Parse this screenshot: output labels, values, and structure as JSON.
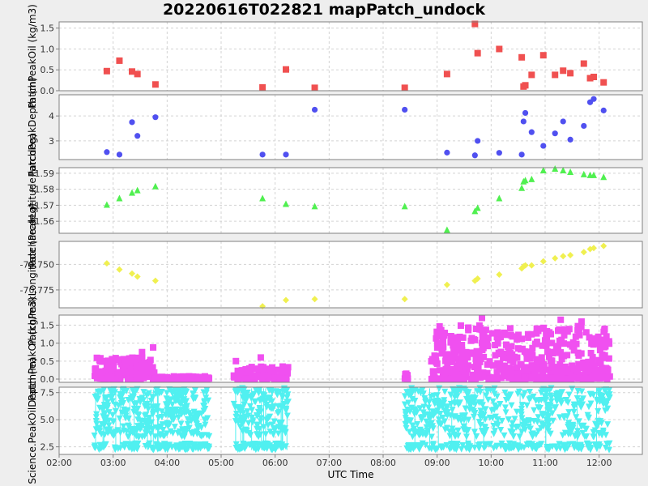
{
  "title": "20220616T022821 mapPatch_undock",
  "xlabel": "UTC Time",
  "colors": {
    "background": "#eeeeee",
    "plot_bg": "#ffffff",
    "grid": "#d3d3d3",
    "red": "#f05050",
    "blue": "#5050f0",
    "green": "#50f050",
    "yellow": "#f0f050",
    "magenta": "#f050f0",
    "cyan": "#50f0f0"
  },
  "chart_data": [
    {
      "type": "scatter",
      "ylabel": "PatchPeakOil (kg/m3)",
      "marker": "square",
      "color": "#f05050",
      "xlim": [
        "02:00",
        "12:48"
      ],
      "ylim": [
        0,
        1.65
      ],
      "yticks": [
        0.0,
        0.5,
        1.0,
        1.5
      ],
      "ytick_labels": [
        "0.0",
        "0.5",
        "1.0",
        "1.5"
      ],
      "x": [
        "02:53",
        "03:07",
        "03:21",
        "03:27",
        "03:47",
        "05:46",
        "06:12",
        "06:44",
        "08:24",
        "09:11",
        "09:42",
        "09:45",
        "10:09",
        "10:34",
        "10:36",
        "10:38",
        "10:45",
        "10:58",
        "11:11",
        "11:20",
        "11:28",
        "11:43",
        "11:50",
        "11:54",
        "12:05"
      ],
      "y": [
        0.47,
        0.72,
        0.46,
        0.4,
        0.15,
        0.08,
        0.51,
        0.07,
        0.07,
        0.4,
        1.6,
        0.9,
        1.0,
        0.8,
        0.1,
        0.13,
        0.38,
        0.85,
        0.38,
        0.48,
        0.42,
        0.65,
        0.3,
        0.33,
        0.2
      ]
    },
    {
      "type": "scatter",
      "ylabel": "PatchPeakDepth (m)",
      "marker": "circle",
      "color": "#5050f0",
      "xlim": [
        "02:00",
        "12:48"
      ],
      "ylim": [
        2.25,
        4.85
      ],
      "yticks": [
        3,
        4
      ],
      "ytick_labels": [
        "3",
        "4"
      ],
      "x": [
        "02:53",
        "03:07",
        "03:21",
        "03:27",
        "03:47",
        "05:46",
        "06:12",
        "06:44",
        "08:24",
        "09:11",
        "09:42",
        "09:45",
        "10:09",
        "10:34",
        "10:36",
        "10:38",
        "10:45",
        "10:58",
        "11:11",
        "11:20",
        "11:28",
        "11:43",
        "11:50",
        "11:54",
        "12:05"
      ],
      "y": [
        2.55,
        2.45,
        3.75,
        3.2,
        3.95,
        2.45,
        2.45,
        4.25,
        4.25,
        2.53,
        2.42,
        3.0,
        2.52,
        2.45,
        3.78,
        4.12,
        3.35,
        2.8,
        3.3,
        3.78,
        3.05,
        3.6,
        4.55,
        4.68,
        4.22
      ]
    },
    {
      "type": "scatter",
      "ylabel": "PatchPeakLatitude (arcdeg)",
      "marker": "triangle-up",
      "color": "#50f050",
      "xlim": [
        "02:00",
        "12:48"
      ],
      "ylim": [
        41.5525,
        41.5935
      ],
      "yticks": [
        41.56,
        41.57,
        41.58,
        41.59
      ],
      "ytick_labels": [
        "41.56",
        "41.57",
        "41.58",
        "41.59"
      ],
      "x": [
        "02:53",
        "03:07",
        "03:21",
        "03:27",
        "03:47",
        "05:46",
        "06:12",
        "06:44",
        "08:24",
        "09:11",
        "09:42",
        "09:45",
        "10:09",
        "10:34",
        "10:36",
        "10:38",
        "10:45",
        "10:58",
        "11:11",
        "11:20",
        "11:28",
        "11:43",
        "11:50",
        "11:54",
        "12:05"
      ],
      "y": [
        41.5705,
        41.5745,
        41.578,
        41.5795,
        41.582,
        41.5745,
        41.571,
        41.5695,
        41.5695,
        41.5548,
        41.5665,
        41.5685,
        41.5745,
        41.581,
        41.585,
        41.5858,
        41.5865,
        41.592,
        41.593,
        41.592,
        41.591,
        41.5895,
        41.589,
        41.589,
        41.5878
      ]
    },
    {
      "type": "scatter",
      "ylabel": "PatchPeakLongitude (arcdeg)",
      "marker": "diamond",
      "color": "#f0f050",
      "xlim": [
        "02:00",
        "12:48"
      ],
      "ylim": [
        -70.7925,
        -70.7275
      ],
      "yticks": [
        -70.775,
        -70.75
      ],
      "ytick_labels": [
        "-70.775",
        "-70.750"
      ],
      "x": [
        "02:53",
        "03:07",
        "03:21",
        "03:27",
        "03:47",
        "05:46",
        "06:12",
        "06:44",
        "08:24",
        "09:11",
        "09:42",
        "09:45",
        "10:09",
        "10:34",
        "10:36",
        "10:38",
        "10:45",
        "10:58",
        "11:11",
        "11:20",
        "11:28",
        "11:43",
        "11:50",
        "11:54",
        "12:05"
      ],
      "y": [
        -70.749,
        -70.755,
        -70.759,
        -70.762,
        -70.766,
        -70.791,
        -70.785,
        -70.784,
        -70.784,
        -70.77,
        -70.766,
        -70.764,
        -70.76,
        -70.754,
        -70.752,
        -70.751,
        -70.751,
        -70.747,
        -70.744,
        -70.742,
        -70.741,
        -70.738,
        -70.735,
        -70.734,
        -70.732
      ]
    },
    {
      "type": "scatter",
      "ylabel": "PatchPeakOil (kg/m3)",
      "marker": "square",
      "color": "#f050f0",
      "xlim": [
        "02:00",
        "12:48"
      ],
      "ylim": [
        -0.09,
        1.78
      ],
      "yticks": [
        0.0,
        0.5,
        1.0,
        1.5
      ],
      "ytick_labels": [
        "0.0",
        "0.5",
        "1.0",
        "1.5"
      ],
      "segments": [
        {
          "start": "02:39",
          "end": "03:46",
          "ymin": 0.0,
          "ymax": 0.6,
          "peaks": [
            0.88,
            0.75
          ],
          "n": 160
        },
        {
          "start": "03:46",
          "end": "04:47",
          "ymin": 0.0,
          "ymax": 0.08,
          "peaks": [],
          "n": 80
        },
        {
          "start": "05:14",
          "end": "06:15",
          "ymin": 0.0,
          "ymax": 0.35,
          "peaks": [
            0.6,
            0.5
          ],
          "n": 110
        },
        {
          "start": "08:24",
          "end": "08:30",
          "ymin": 0.0,
          "ymax": 0.2,
          "peaks": [],
          "n": 10
        },
        {
          "start": "08:53",
          "end": "12:12",
          "ymin": 0.0,
          "ymax": 1.5,
          "peaks": [
            1.7,
            1.65,
            1.6
          ],
          "n": 520
        }
      ]
    },
    {
      "type": "scatter",
      "ylabel": "Science.PeakOilDepth (m)",
      "marker": "triangle-down",
      "color": "#50f0f0",
      "xlim": [
        "02:00",
        "12:48"
      ],
      "ylim": [
        1.8,
        8.0
      ],
      "yticks": [
        2.5,
        5.0,
        7.5
      ],
      "ytick_labels": [
        "2.5",
        "5.0",
        "7.5"
      ],
      "segments": [
        {
          "start": "02:39",
          "end": "04:47",
          "ymin": 2.2,
          "ymax": 7.8,
          "n": 450
        },
        {
          "start": "05:14",
          "end": "06:15",
          "ymin": 2.2,
          "ymax": 7.9,
          "n": 200
        },
        {
          "start": "08:24",
          "end": "12:12",
          "ymin": 2.2,
          "ymax": 7.9,
          "n": 600
        }
      ]
    }
  ],
  "xticks": [
    "02:00",
    "03:00",
    "04:00",
    "05:00",
    "06:00",
    "07:00",
    "08:00",
    "09:00",
    "10:00",
    "11:00",
    "12:00"
  ]
}
